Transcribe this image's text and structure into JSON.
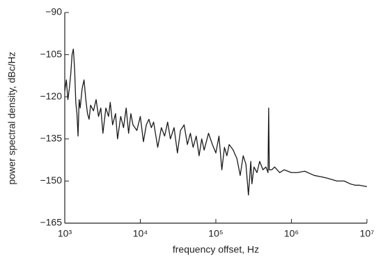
{
  "chart_data": {
    "type": "line",
    "xlabel": "frequency offset, Hz",
    "ylabel": "power spectral density, dBc/Hz",
    "xscale": "log",
    "xlim": [
      1000,
      10000000
    ],
    "ylim": [
      -165,
      -90
    ],
    "xticks": [
      {
        "value": 1000,
        "label": "10³"
      },
      {
        "value": 10000,
        "label": "10⁴"
      },
      {
        "value": 100000,
        "label": "10⁵"
      },
      {
        "value": 1000000,
        "label": "10⁶"
      },
      {
        "value": 10000000,
        "label": "10⁷"
      }
    ],
    "yticks": [
      {
        "value": -165,
        "label": "−165"
      },
      {
        "value": -150,
        "label": "−150"
      },
      {
        "value": -135,
        "label": "−135"
      },
      {
        "value": -120,
        "label": "−120"
      },
      {
        "value": -105,
        "label": "−105"
      },
      {
        "value": -90,
        "label": "−90"
      }
    ],
    "x": [
      1000,
      1050,
      1100,
      1150,
      1200,
      1250,
      1300,
      1350,
      1400,
      1450,
      1500,
      1550,
      1600,
      1700,
      1800,
      1900,
      2000,
      2100,
      2200,
      2400,
      2600,
      2800,
      3000,
      3200,
      3500,
      3800,
      4000,
      4300,
      4700,
      5000,
      5500,
      6000,
      6500,
      7000,
      7500,
      8000,
      9000,
      10000,
      11000,
      12000,
      13000,
      14000,
      15000,
      17000,
      19000,
      21000,
      23000,
      25000,
      28000,
      31000,
      34000,
      38000,
      42000,
      46000,
      50000,
      55000,
      60000,
      65000,
      70000,
      80000,
      90000,
      100000,
      110000,
      120000,
      130000,
      140000,
      150000,
      170000,
      190000,
      210000,
      230000,
      250000,
      270000,
      290000,
      300000,
      320000,
      350000,
      380000,
      420000,
      460000,
      490000,
      500000,
      510000,
      550000,
      600000,
      700000,
      800000,
      1000000,
      1200000,
      1500000,
      2000000,
      2500000,
      3000000,
      4000000,
      5000000,
      6000000,
      7000000,
      8000000,
      10000000
    ],
    "series": [
      {
        "name": "psd",
        "color": "#1a1a1a",
        "values": [
          -118,
          -114,
          -121,
          -117,
          -112,
          -105,
          -103,
          -110,
          -122,
          -126,
          -134,
          -121,
          -124,
          -117,
          -114,
          -121,
          -126,
          -128,
          -123,
          -125,
          -121,
          -127,
          -124,
          -133,
          -124,
          -127,
          -122,
          -130,
          -126,
          -135,
          -127,
          -131,
          -124,
          -133,
          -126,
          -130,
          -132,
          -127,
          -136,
          -130,
          -128,
          -131,
          -129,
          -138,
          -131,
          -134,
          -129,
          -135,
          -131,
          -140,
          -132,
          -130,
          -137,
          -133,
          -138,
          -134,
          -141,
          -135,
          -139,
          -133,
          -137,
          -140,
          -134,
          -146,
          -138,
          -141,
          -137,
          -139,
          -142,
          -148,
          -141,
          -144,
          -155,
          -143,
          -151,
          -145,
          -147,
          -143,
          -146,
          -145,
          -147,
          -124,
          -146,
          -146,
          -145,
          -147,
          -146,
          -147,
          -147,
          -146.5,
          -148,
          -148.5,
          -149,
          -150,
          -150,
          -151,
          -151.5,
          -151.5,
          -152
        ]
      }
    ]
  }
}
